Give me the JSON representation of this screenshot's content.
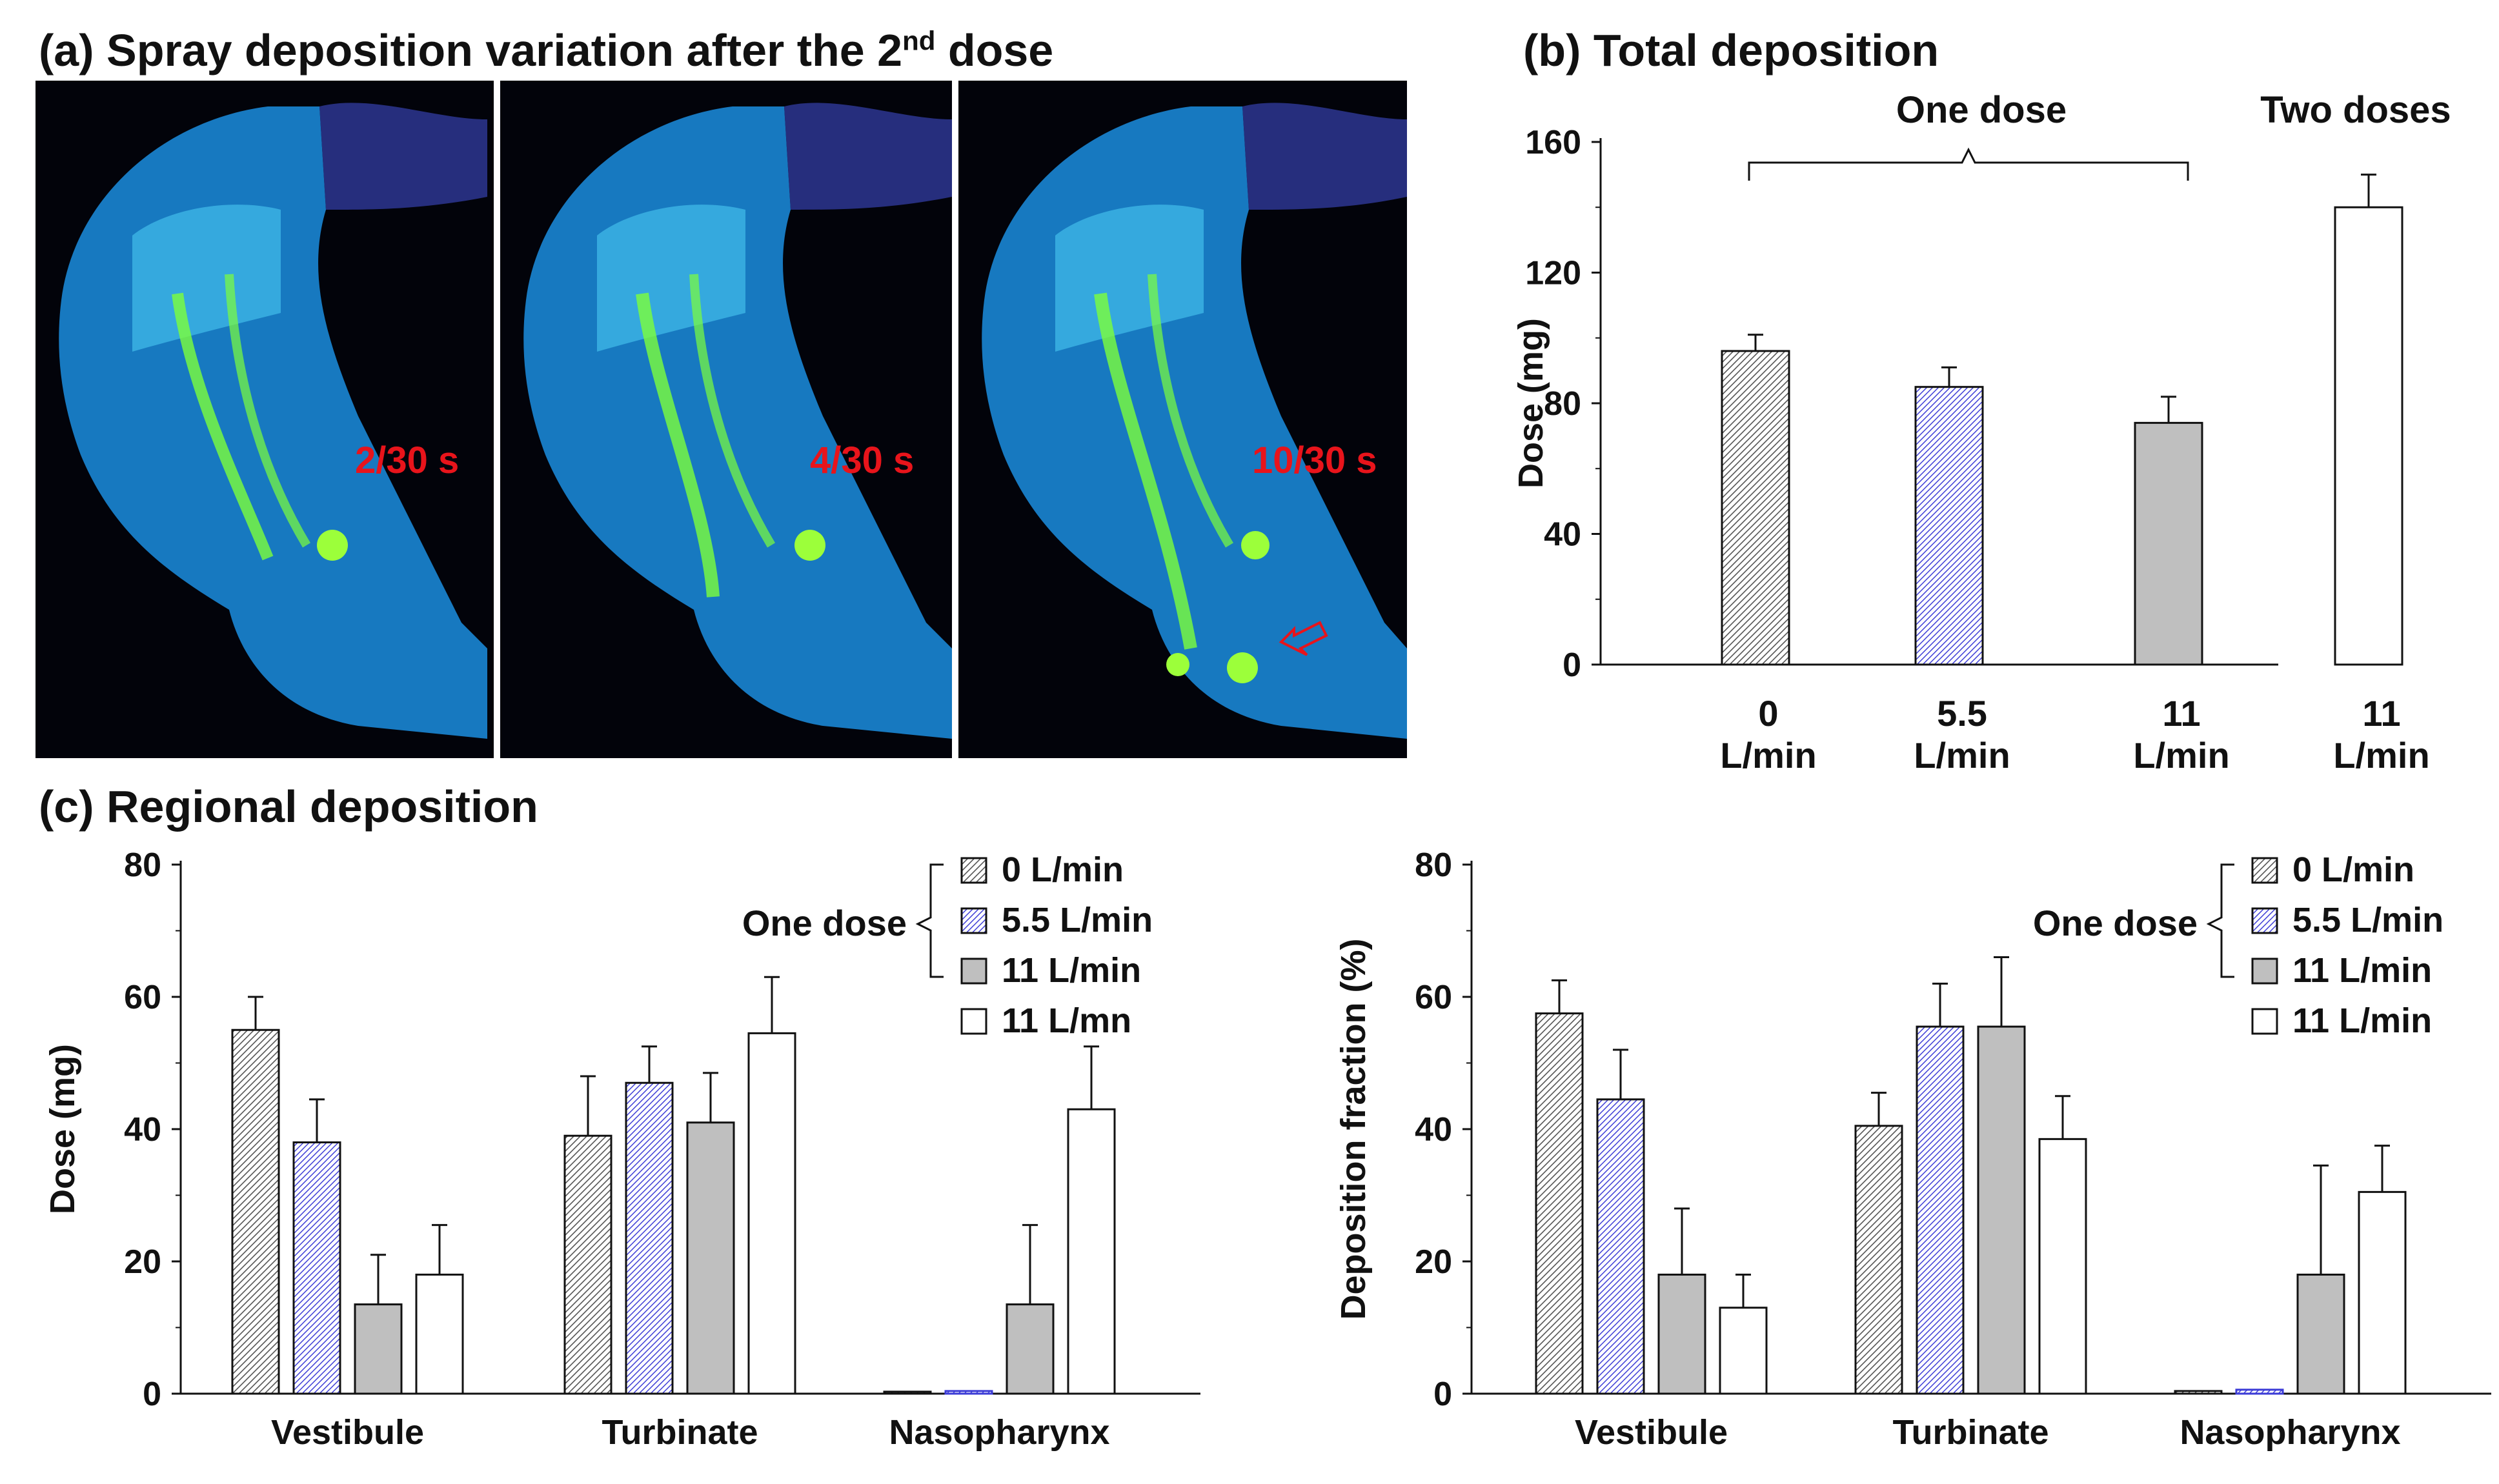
{
  "panel_a": {
    "title_pre": "(a) Spray deposition variation after the 2",
    "title_sup": "nd",
    "title_post": " dose",
    "frames": [
      {
        "time": "2/30 s"
      },
      {
        "time": "4/30 s"
      },
      {
        "time": "10/30 s"
      }
    ]
  },
  "panel_b": {
    "title": "(b) Total deposition"
  },
  "panel_c": {
    "title": "(c) Regional deposition"
  },
  "colors": {
    "hatch_gray": "#555555",
    "hatch_blue": "#3b3bd6",
    "solid_gray": "#bfbfbf",
    "open": "#ffffff",
    "red_label": "#e8141b"
  },
  "chart_data": [
    {
      "type": "bar",
      "title": "(b) Total deposition",
      "ylabel": "Dose (mg)",
      "ylim": [
        0,
        160
      ],
      "yticks": [
        0,
        40,
        80,
        120,
        160
      ],
      "categories": [
        [
          "0",
          "L/min"
        ],
        [
          "5.5",
          "L/min"
        ],
        [
          "11",
          "L/min"
        ],
        [
          "11",
          "L/min"
        ]
      ],
      "values": [
        96,
        85,
        74,
        140
      ],
      "errors": [
        5,
        6,
        8,
        10
      ],
      "styles": [
        "hatch-gray",
        "hatch-blue",
        "solid-gray",
        "open"
      ],
      "annotations": {
        "one_dose": "One dose",
        "two_doses": "Two doses"
      }
    },
    {
      "type": "bar",
      "ylabel": "Dose (mg)",
      "ylim": [
        0,
        80
      ],
      "yticks": [
        0,
        20,
        40,
        60,
        80
      ],
      "categories": [
        "Vestibule",
        "Turbinate",
        "Nasopharynx"
      ],
      "series": [
        {
          "name": "0 L/min",
          "style": "hatch-gray",
          "values": [
            55,
            39,
            0.3
          ],
          "errors": [
            5,
            9,
            0
          ]
        },
        {
          "name": "5.5 L/min",
          "style": "hatch-blue",
          "values": [
            38,
            47,
            0.4
          ],
          "errors": [
            6.5,
            5.5,
            0
          ]
        },
        {
          "name": "11 L/min",
          "style": "solid-gray",
          "values": [
            13.5,
            41,
            13.5
          ],
          "errors": [
            7.5,
            7.5,
            12
          ]
        },
        {
          "name": "11 L/mn",
          "style": "open",
          "values": [
            18,
            54.5,
            43
          ],
          "errors": [
            7.5,
            8.5,
            9.5
          ]
        }
      ],
      "legend": {
        "group_label": "One dose",
        "placement": "top-right"
      }
    },
    {
      "type": "bar",
      "ylabel": "Deposition fraction (%)",
      "ylim": [
        0,
        80
      ],
      "yticks": [
        0,
        20,
        40,
        60,
        80
      ],
      "categories": [
        "Vestibule",
        "Turbinate",
        "Nasopharynx"
      ],
      "series": [
        {
          "name": "0 L/min",
          "style": "hatch-gray",
          "values": [
            57.5,
            40.5,
            0.4
          ],
          "errors": [
            5,
            5,
            0
          ]
        },
        {
          "name": "5.5 L/min",
          "style": "hatch-blue",
          "values": [
            44.5,
            55.5,
            0.6
          ],
          "errors": [
            7.5,
            6.5,
            0
          ]
        },
        {
          "name": "11 L/min",
          "style": "solid-gray",
          "values": [
            18,
            55.5,
            18
          ],
          "errors": [
            10,
            10.5,
            16.5
          ]
        },
        {
          "name": "11 L/min",
          "style": "open",
          "values": [
            13,
            38.5,
            30.5
          ],
          "errors": [
            5,
            6.5,
            7
          ]
        }
      ],
      "legend": {
        "group_label": "One dose",
        "placement": "top-right"
      }
    }
  ]
}
